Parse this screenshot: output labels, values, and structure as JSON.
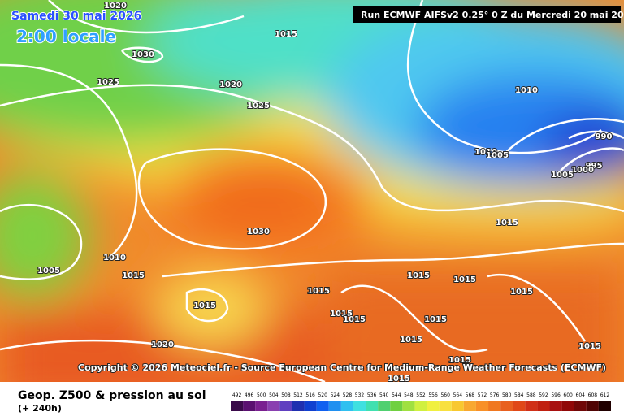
{
  "header": {
    "date": "Samedi 30 mai 2026",
    "local_time": "2:00 locale",
    "run": "Run ECMWF AIFSv2 0.25° 0 Z du Mercredi 20 mai 2026"
  },
  "copyright": "Copyright © 2026 Meteociel.fr - Source European Centre for Medium-Range Weather Forecasts (ECMWF)",
  "footer": {
    "title": "Geop. Z500 & pression au sol",
    "lead": "(+ 240h)"
  },
  "isobar_labels": [
    1020,
    1015,
    1030,
    1025,
    1020,
    1025,
    1010,
    990,
    1010,
    1005,
    995,
    1000,
    1005,
    1030,
    1015,
    1010,
    1005,
    1015,
    1015,
    1015,
    1015,
    1015,
    1015,
    1015,
    1015,
    1015,
    1015,
    1020,
    1015,
    1015,
    1015
  ],
  "colorbar": {
    "values": [
      492,
      496,
      500,
      504,
      508,
      512,
      516,
      520,
      524,
      528,
      532,
      536,
      540,
      544,
      548,
      552,
      556,
      560,
      564,
      568,
      572,
      576,
      580,
      584,
      588,
      592,
      596,
      600,
      604,
      608,
      612
    ],
    "colors": [
      "#3a0a4a",
      "#5a1070",
      "#7a2090",
      "#8a40b0",
      "#6040c0",
      "#2030b0",
      "#1040d0",
      "#1060f0",
      "#2090f0",
      "#30c0f0",
      "#40e0e0",
      "#40e0b0",
      "#50d070",
      "#70d040",
      "#a0e040",
      "#d0f040",
      "#f0f040",
      "#f8e040",
      "#f8c830",
      "#f8a830",
      "#f89028",
      "#f07820",
      "#e86020",
      "#e04818",
      "#d03018",
      "#c02010",
      "#a81010",
      "#900808",
      "#700808",
      "#500404",
      "#200000"
    ]
  }
}
